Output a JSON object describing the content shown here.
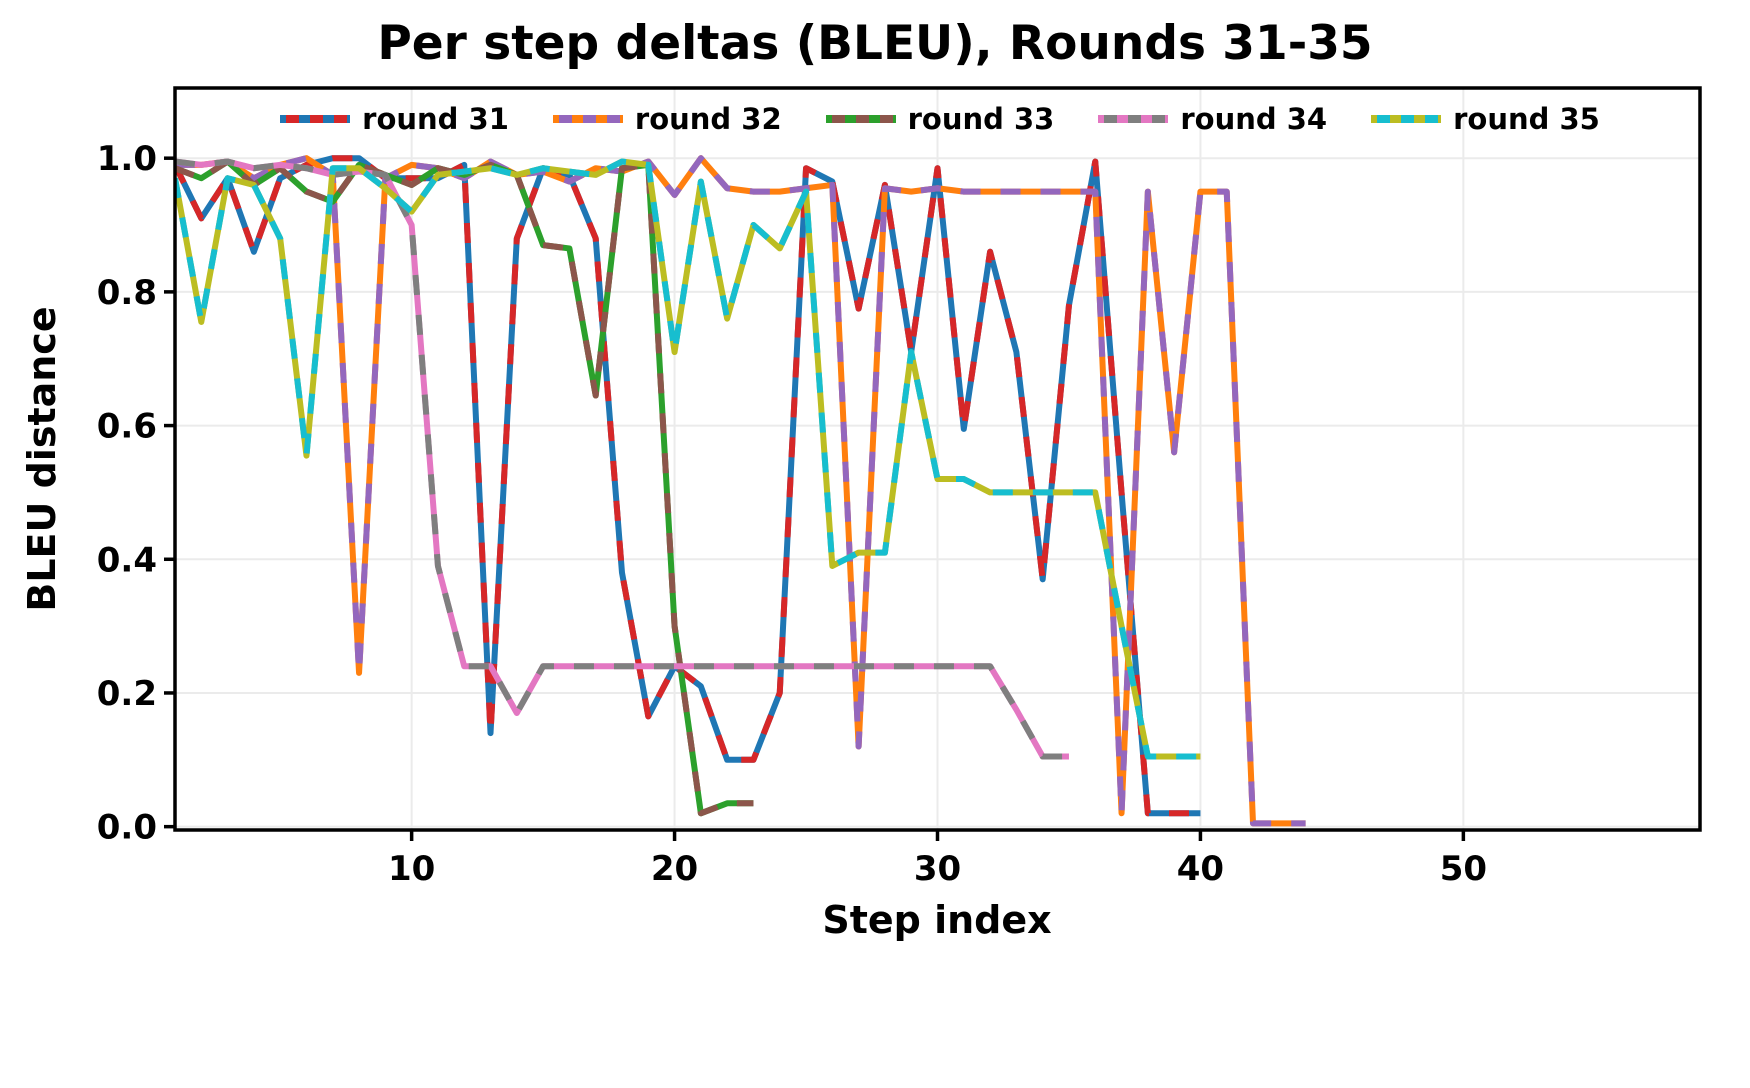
{
  "page": {
    "background": "#ffffff"
  },
  "chart_data": {
    "type": "line",
    "title": "Per step deltas (BLEU), Rounds 31-35",
    "xlabel": "Step index",
    "ylabel": "BLEU distance",
    "xlim": [
      1,
      59
    ],
    "ylim": [
      -0.005,
      1.105
    ],
    "xticks": [
      10,
      20,
      30,
      40,
      50
    ],
    "yticks": [
      0,
      0.2,
      0.4,
      0.6,
      0.8,
      1.0
    ],
    "grid": true,
    "grid_color": "#ebebeb",
    "axis_color": "#000000",
    "legend_position": "top-center-inside",
    "line_width": 6,
    "series": [
      {
        "name": "round 31",
        "color_a": "#1f77b4",
        "color_b": "#d62728",
        "x_start": 1,
        "y": [
          0.99,
          0.91,
          0.97,
          0.86,
          0.97,
          0.99,
          1.0,
          1.0,
          0.97,
          0.97,
          0.97,
          0.99,
          0.14,
          0.88,
          0.985,
          0.975,
          0.88,
          0.38,
          0.165,
          0.24,
          0.21,
          0.1,
          0.1,
          0.2,
          0.985,
          0.965,
          0.775,
          0.96,
          0.71,
          0.985,
          0.595,
          0.86,
          0.71,
          0.37,
          0.78,
          0.995,
          0.5,
          0.02,
          0.02,
          0.02
        ]
      },
      {
        "name": "round 32",
        "color_a": "#ff7f0e",
        "color_b": "#9467bd",
        "x_start": 1,
        "y": [
          0.99,
          0.99,
          0.995,
          0.97,
          0.99,
          1.0,
          0.975,
          0.23,
          0.97,
          0.99,
          0.985,
          0.97,
          0.995,
          0.975,
          0.98,
          0.965,
          0.985,
          0.98,
          0.995,
          0.945,
          1.0,
          0.955,
          0.95,
          0.95,
          0.955,
          0.96,
          0.12,
          0.955,
          0.95,
          0.955,
          0.95,
          0.95,
          0.95,
          0.95,
          0.95,
          0.95,
          0.02,
          0.95,
          0.56,
          0.95,
          0.95,
          0.005,
          0.005,
          0.005
        ]
      },
      {
        "name": "round 33",
        "color_a": "#2ca02c",
        "color_b": "#8c564b",
        "x_start": 1,
        "y": [
          0.985,
          0.97,
          0.995,
          0.96,
          0.985,
          0.95,
          0.935,
          0.99,
          0.975,
          0.96,
          0.985,
          0.975,
          0.99,
          0.975,
          0.87,
          0.865,
          0.645,
          0.985,
          0.99,
          0.3,
          0.02,
          0.035,
          0.035
        ]
      },
      {
        "name": "round 34",
        "color_a": "#e377c2",
        "color_b": "#7f7f7f",
        "x_start": 1,
        "y": [
          0.995,
          0.99,
          0.995,
          0.985,
          0.99,
          0.985,
          0.975,
          0.98,
          0.975,
          0.9,
          0.39,
          0.24,
          0.24,
          0.17,
          0.24,
          0.24,
          0.24,
          0.24,
          0.24,
          0.24,
          0.24,
          0.24,
          0.24,
          0.24,
          0.24,
          0.24,
          0.24,
          0.24,
          0.24,
          0.24,
          0.24,
          0.24,
          0.175,
          0.105,
          0.105
        ]
      },
      {
        "name": "round 35",
        "color_a": "#bcbd22",
        "color_b": "#17becf",
        "x_start": 1,
        "y": [
          0.97,
          0.755,
          0.97,
          0.96,
          0.88,
          0.555,
          0.985,
          0.985,
          0.955,
          0.92,
          0.975,
          0.98,
          0.985,
          0.975,
          0.985,
          0.98,
          0.975,
          0.995,
          0.99,
          0.71,
          0.965,
          0.76,
          0.9,
          0.865,
          0.95,
          0.39,
          0.41,
          0.41,
          0.71,
          0.52,
          0.52,
          0.5,
          0.5,
          0.5,
          0.5,
          0.5,
          0.3,
          0.105,
          0.105,
          0.105
        ]
      }
    ]
  }
}
